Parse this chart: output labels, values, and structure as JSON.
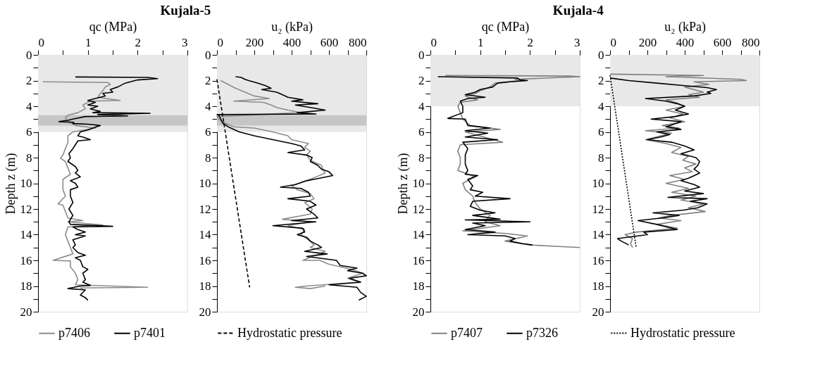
{
  "chart_data": [
    {
      "type": "line",
      "title": "Kujala-5",
      "xlabel": "qc (MPa)",
      "ylabel": "Depth z (m)",
      "xlim": [
        0,
        3
      ],
      "xticks": [
        0,
        {
          "value": 0.5,
          "label": null
        },
        1,
        {
          "value": 1.5,
          "label": null
        },
        2,
        {
          "value": 2.5,
          "label": null
        },
        3
      ],
      "ylim": [
        20,
        0
      ],
      "yticks": [
        0,
        {
          "value": 1,
          "label": null
        },
        2,
        {
          "value": 3,
          "label": null
        },
        4,
        {
          "value": 5,
          "label": null
        },
        6,
        {
          "value": 7,
          "label": null
        },
        8,
        {
          "value": 9,
          "label": null
        },
        10,
        {
          "value": 11,
          "label": null
        },
        12,
        {
          "value": 13,
          "label": null
        },
        14,
        {
          "value": 15,
          "label": null
        },
        16,
        {
          "value": 17,
          "label": null
        },
        18,
        {
          "value": 19,
          "label": null
        },
        20
      ],
      "legend": "bottom",
      "grid": false,
      "bands": [
        {
          "axis": "y",
          "from": 0,
          "to": 6,
          "color": "#e8e8e8"
        },
        {
          "axis": "y",
          "from": 4.7,
          "to": 5.5,
          "color": "#c6c6c6"
        }
      ],
      "series": [
        {
          "name": "p7406",
          "color": "#8c8c8c",
          "x": [
            0.1,
            1.4,
            1.45,
            1.35,
            1.3,
            1.25,
            1.2,
            1.65,
            1.05,
            0.9,
            0.95,
            0.8,
            0.6,
            0.55,
            0.6,
            0.75,
            1.15,
            0.7,
            0.6,
            0.6,
            0.55,
            0.5,
            0.45,
            0.55,
            0.6,
            0.65,
            0.5,
            0.5,
            0.5,
            0.55,
            0.4,
            0.5,
            0.55,
            0.6,
            0.9,
            0.6,
            1.3,
            0.6,
            0.55,
            0.6,
            0.65,
            0.7,
            0.3,
            0.65,
            0.65,
            0.75,
            0.8,
            0.75,
            2.2,
            0.85,
            0.9
          ],
          "values": [
            2.1,
            2.15,
            2.3,
            2.5,
            2.8,
            3.0,
            3.3,
            3.55,
            3.6,
            3.9,
            4.2,
            4.5,
            4.7,
            4.9,
            5.2,
            5.5,
            5.7,
            6.0,
            6.3,
            6.8,
            7.3,
            7.8,
            8.05,
            8.3,
            8.8,
            9.3,
            9.7,
            10.0,
            10.5,
            11.0,
            11.6,
            11.7,
            12.2,
            12.7,
            12.9,
            13.0,
            13.25,
            13.4,
            14.0,
            14.5,
            15.0,
            15.5,
            16.0,
            16.05,
            16.5,
            17.0,
            17.5,
            17.9,
            18.1,
            18.15,
            18.2
          ]
        },
        {
          "name": "p7401",
          "color": "#000000",
          "x": [
            0.75,
            2.2,
            2.4,
            2.0,
            1.75,
            1.6,
            1.45,
            1.5,
            1.3,
            1.35,
            1.15,
            1.0,
            1.15,
            1.0,
            1.2,
            1.05,
            1.25,
            1.1,
            2.25,
            1.2,
            1.8,
            0.95,
            0.7,
            0.6,
            0.42,
            0.72,
            0.7,
            1.0,
            1.25,
            1.1,
            1.0,
            0.85,
            0.8,
            0.9,
            1.05,
            0.8,
            0.75,
            0.7,
            0.62,
            0.65,
            0.6,
            0.75,
            0.8,
            0.75,
            0.85,
            0.65,
            0.75,
            0.8,
            0.65,
            0.65,
            0.7,
            0.62,
            0.7,
            0.62,
            0.65,
            1.5,
            0.7,
            0.8,
            0.95,
            0.75,
            0.95,
            0.7,
            0.75,
            0.7,
            0.8,
            0.95,
            0.75,
            0.85,
            0.9,
            1.0,
            0.9,
            0.95,
            0.9,
            1.05,
            0.85,
            0.6,
            0.95,
            0.85,
            0.95,
            1.0
          ],
          "values": [
            1.72,
            1.75,
            1.85,
            1.95,
            2.2,
            2.5,
            2.7,
            2.9,
            3.0,
            3.2,
            3.4,
            3.55,
            3.7,
            3.9,
            4.0,
            4.2,
            4.4,
            4.5,
            4.55,
            4.65,
            4.75,
            4.8,
            5.0,
            5.1,
            5.2,
            5.25,
            5.35,
            5.4,
            5.5,
            5.7,
            5.85,
            6.0,
            6.3,
            6.4,
            6.6,
            6.7,
            7.0,
            7.3,
            7.7,
            8.0,
            8.3,
            8.7,
            9.0,
            9.2,
            9.5,
            9.8,
            10.0,
            10.3,
            10.5,
            11.0,
            11.5,
            12.0,
            12.5,
            13.0,
            13.2,
            13.35,
            13.4,
            13.6,
            13.8,
            14.0,
            14.1,
            14.4,
            14.8,
            15.0,
            15.4,
            15.6,
            15.8,
            16.0,
            16.5,
            16.7,
            17.0,
            17.5,
            17.7,
            17.95,
            18.0,
            18.2,
            18.3,
            18.7,
            18.9,
            19.1
          ]
        }
      ]
    },
    {
      "type": "line",
      "xlabel": "u₂ (kPa)",
      "xlim": [
        0,
        800
      ],
      "xticks": [
        0,
        {
          "value": 100,
          "label": null
        },
        200,
        {
          "value": 300,
          "label": null
        },
        400,
        {
          "value": 500,
          "label": null
        },
        600,
        {
          "value": 700,
          "label": null
        },
        800
      ],
      "ylim": [
        20,
        0
      ],
      "yticks": [
        0,
        {
          "value": 1,
          "label": null
        },
        2,
        {
          "value": 3,
          "label": null
        },
        4,
        {
          "value": 5,
          "label": null
        },
        6,
        {
          "value": 7,
          "label": null
        },
        8,
        {
          "value": 9,
          "label": null
        },
        10,
        {
          "value": 11,
          "label": null
        },
        12,
        {
          "value": 13,
          "label": null
        },
        14,
        {
          "value": 15,
          "label": null
        },
        16,
        {
          "value": 17,
          "label": null
        },
        18,
        {
          "value": 19,
          "label": null
        },
        20
      ],
      "legend": "bottom",
      "grid": false,
      "bands": [
        {
          "axis": "y",
          "from": 0,
          "to": 6,
          "color": "#e8e8e8"
        },
        {
          "axis": "y",
          "from": 4.7,
          "to": 5.5,
          "color": "#c6c6c6"
        }
      ],
      "series": [
        {
          "color": "#8c8c8c",
          "x": [
            20,
            60,
            100,
            150,
            200,
            280,
            90,
            250,
            290,
            320,
            380,
            450,
            0,
            10,
            40,
            90,
            200,
            300,
            380,
            400,
            490,
            470,
            500,
            480,
            500,
            560,
            570,
            580,
            530,
            480,
            400,
            430,
            500,
            520,
            470,
            510,
            500,
            350,
            500,
            380,
            470,
            450,
            490,
            520,
            500,
            580,
            460,
            550,
            600,
            720,
            780,
            700,
            760,
            480,
            420,
            500,
            580
          ],
          "values": [
            2.0,
            2.3,
            2.6,
            2.9,
            3.2,
            3.4,
            3.6,
            3.7,
            3.9,
            4.1,
            4.3,
            4.5,
            4.8,
            5.0,
            5.3,
            5.6,
            5.7,
            6.0,
            6.3,
            6.6,
            6.9,
            7.2,
            7.5,
            7.8,
            8.2,
            8.6,
            9.0,
            9.2,
            9.5,
            9.8,
            10.2,
            10.5,
            10.8,
            11.2,
            11.5,
            12.0,
            12.4,
            12.8,
            13.0,
            13.3,
            13.6,
            14.0,
            14.4,
            14.8,
            15.0,
            15.3,
            16.0,
            16.0,
            16.3,
            16.7,
            17.0,
            17.4,
            17.7,
            18.0,
            18.1,
            18.2,
            18.0
          ]
        },
        {
          "color": "#000000",
          "x": [
            100,
            130,
            150,
            170,
            220,
            260,
            290,
            240,
            320,
            350,
            380,
            460,
            400,
            540,
            420,
            500,
            580,
            430,
            530,
            0,
            10,
            20,
            30,
            60,
            120,
            200,
            300,
            400,
            450,
            470,
            380,
            480,
            510,
            500,
            540,
            560,
            600,
            620,
            550,
            480,
            420,
            340,
            450,
            490,
            500,
            380,
            500,
            530,
            480,
            520,
            540,
            400,
            530,
            300,
            460,
            470,
            430,
            480,
            500,
            540,
            560,
            470,
            590,
            480,
            640,
            660,
            750,
            700,
            780,
            800,
            710,
            770,
            600,
            750,
            770,
            800,
            760
          ],
          "values": [
            1.7,
            1.75,
            1.9,
            2.0,
            2.2,
            2.4,
            2.6,
            2.7,
            2.9,
            3.1,
            3.3,
            3.5,
            3.6,
            3.8,
            3.9,
            4.1,
            4.3,
            4.5,
            4.6,
            4.65,
            4.7,
            5.0,
            5.3,
            5.6,
            6.0,
            6.3,
            6.6,
            6.9,
            7.1,
            7.4,
            7.6,
            7.8,
            8.0,
            8.3,
            8.6,
            8.9,
            9.1,
            9.4,
            9.6,
            9.8,
            10.1,
            10.3,
            10.4,
            10.7,
            11.0,
            11.2,
            11.4,
            11.7,
            12.0,
            12.4,
            12.7,
            12.9,
            13.0,
            13.3,
            13.5,
            13.8,
            14.0,
            14.2,
            14.5,
            14.8,
            15.0,
            15.3,
            15.5,
            15.7,
            16.0,
            16.4,
            16.6,
            16.8,
            17.0,
            17.2,
            17.4,
            17.7,
            17.9,
            18.1,
            18.5,
            18.8,
            19.1
          ]
        },
        {
          "name": "Hydrostatic pressure",
          "color": "#000000",
          "line_style": "dashed",
          "x": [
            0,
            175
          ],
          "values": [
            1.9,
            18.1
          ]
        }
      ]
    },
    {
      "type": "line",
      "title": "Kujala-4",
      "xlabel": "qc (MPa)",
      "ylabel": "Depth z (m)",
      "xlim": [
        0,
        3
      ],
      "xticks": [
        0,
        {
          "value": 0.5,
          "label": null
        },
        1,
        {
          "value": 1.5,
          "label": null
        },
        2,
        {
          "value": 2.5,
          "label": null
        },
        3
      ],
      "ylim": [
        20,
        0
      ],
      "yticks": [
        0,
        {
          "value": 1,
          "label": null
        },
        2,
        {
          "value": 3,
          "label": null
        },
        4,
        {
          "value": 5,
          "label": null
        },
        6,
        {
          "value": 7,
          "label": null
        },
        8,
        {
          "value": 9,
          "label": null
        },
        10,
        {
          "value": 11,
          "label": null
        },
        12,
        {
          "value": 13,
          "label": null
        },
        14,
        {
          "value": 15,
          "label": null
        },
        16,
        {
          "value": 17,
          "label": null
        },
        18,
        {
          "value": 19,
          "label": null
        },
        20
      ],
      "legend": "bottom",
      "grid": false,
      "bands": [
        {
          "axis": "y",
          "from": 0,
          "to": 4,
          "color": "#e8e8e8"
        }
      ],
      "series": [
        {
          "name": "p7407",
          "color": "#808080",
          "x": [
            0.3,
            2.8,
            3.0,
            1.7,
            1.8,
            1.3,
            1.2,
            1.0,
            0.9,
            0.7,
            0.95,
            0.6,
            0.55,
            0.6,
            0.65,
            0.8,
            1.4,
            0.7,
            1.45,
            0.6,
            0.55,
            0.6,
            0.6,
            0.55,
            0.9,
            0.65,
            0.7,
            0.85,
            0.9,
            1.0,
            1.2,
            1.1,
            1.4,
            0.65,
            1.5,
            1.95,
            1.5,
            2.0,
            2.5,
            3.0
          ],
          "values": [
            1.6,
            1.65,
            1.7,
            1.9,
            2.0,
            2.2,
            2.5,
            2.8,
            3.0,
            3.2,
            3.5,
            3.7,
            4.0,
            4.5,
            5.0,
            5.5,
            5.8,
            6.0,
            6.8,
            7.0,
            7.5,
            8.0,
            8.5,
            9.0,
            9.5,
            10.0,
            10.5,
            11.0,
            11.5,
            12.0,
            12.5,
            13.0,
            13.3,
            13.7,
            13.9,
            14.1,
            14.5,
            14.8,
            14.9,
            15.0
          ]
        },
        {
          "name": "p7326",
          "color": "#000000",
          "x": [
            0.15,
            1.75,
            1.8,
            1.95,
            1.6,
            1.35,
            1.25,
            1.0,
            0.9,
            0.7,
            1.1,
            0.75,
            0.6,
            0.65,
            0.65,
            0.35,
            0.7,
            0.75,
            1.2,
            0.7,
            1.15,
            0.7,
            1.35,
            0.65,
            0.75,
            0.7,
            0.7,
            0.75,
            0.7,
            0.95,
            0.75,
            0.85,
            0.8,
            1.05,
            0.9,
            1.6,
            0.85,
            0.8,
            1.0,
            1.3,
            0.85,
            1.4,
            0.7,
            2.0,
            0.85,
            1.1,
            0.7,
            1.3,
            0.75,
            1.5,
            1.7,
            1.6,
            1.85,
            2.05
          ],
          "values": [
            1.7,
            1.8,
            1.95,
            2.0,
            2.1,
            2.2,
            2.5,
            2.7,
            2.9,
            3.1,
            3.3,
            3.4,
            3.6,
            4.0,
            4.5,
            4.95,
            5.0,
            5.5,
            5.7,
            5.9,
            6.1,
            6.4,
            6.6,
            6.8,
            7.3,
            7.8,
            8.5,
            9.0,
            9.3,
            9.4,
            9.7,
            10.2,
            10.5,
            10.7,
            11.0,
            11.2,
            11.4,
            11.8,
            12.1,
            12.3,
            12.5,
            12.8,
            12.85,
            13.0,
            13.1,
            13.3,
            13.6,
            13.8,
            14.0,
            14.1,
            14.3,
            14.5,
            14.7,
            14.8
          ]
        }
      ]
    },
    {
      "type": "line",
      "xlabel": "u₂ (kPa)",
      "xlim": [
        0,
        800
      ],
      "xticks": [
        0,
        {
          "value": 100,
          "label": null
        },
        200,
        {
          "value": 300,
          "label": null
        },
        400,
        {
          "value": 500,
          "label": null
        },
        600,
        {
          "value": 700,
          "label": null
        },
        800
      ],
      "ylim": [
        20,
        0
      ],
      "yticks": [
        0,
        {
          "value": 1,
          "label": null
        },
        2,
        {
          "value": 3,
          "label": null
        },
        4,
        {
          "value": 5,
          "label": null
        },
        6,
        {
          "value": 7,
          "label": null
        },
        8,
        {
          "value": 9,
          "label": null
        },
        10,
        {
          "value": 11,
          "label": null
        },
        12,
        {
          "value": 13,
          "label": null
        },
        14,
        {
          "value": 15,
          "label": null
        },
        16,
        {
          "value": 17,
          "label": null
        },
        18,
        {
          "value": 19,
          "label": null
        },
        20
      ],
      "legend": "bottom",
      "grid": false,
      "bands": [
        {
          "axis": "y",
          "from": 0,
          "to": 4,
          "color": "#e8e8e8"
        }
      ],
      "series": [
        {
          "color": "#808080",
          "x": [
            0,
            500,
            300,
            700,
            730,
            450,
            530,
            400,
            500,
            420,
            480,
            300,
            350,
            400,
            300,
            390,
            320,
            400,
            280,
            370,
            190,
            330,
            190,
            300,
            380,
            330,
            420,
            390,
            460,
            400,
            440,
            320,
            400,
            300,
            420,
            330,
            460,
            380,
            500,
            420,
            510,
            330,
            260,
            380,
            250,
            360,
            140,
            80,
            120,
            110,
            120
          ],
          "values": [
            1.5,
            1.6,
            1.7,
            1.9,
            2.0,
            2.1,
            2.3,
            2.5,
            2.9,
            3.1,
            3.3,
            3.5,
            3.7,
            4.0,
            4.3,
            4.6,
            4.9,
            5.2,
            5.5,
            5.7,
            5.9,
            6.1,
            6.6,
            6.9,
            7.2,
            7.6,
            7.9,
            8.2,
            8.5,
            8.8,
            9.1,
            9.4,
            9.7,
            10.0,
            10.4,
            10.7,
            11.0,
            11.3,
            11.6,
            11.9,
            12.2,
            12.5,
            12.7,
            12.9,
            13.2,
            13.5,
            13.8,
            14.0,
            14.3,
            14.7,
            15.0
          ]
        },
        {
          "color": "#000000",
          "x": [
            0,
            100,
            250,
            400,
            520,
            570,
            520,
            540,
            450,
            190,
            300,
            360,
            400,
            350,
            420,
            350,
            220,
            380,
            300,
            380,
            250,
            320,
            270,
            200,
            330,
            400,
            450,
            380,
            460,
            480,
            470,
            450,
            480,
            420,
            380,
            450,
            480,
            400,
            500,
            310,
            520,
            430,
            520,
            470,
            390,
            230,
            370,
            280,
            150,
            250,
            360,
            180,
            200,
            40,
            60,
            100
          ],
          "values": [
            1.8,
            2.0,
            2.2,
            2.4,
            2.55,
            2.7,
            2.9,
            3.0,
            3.2,
            3.4,
            3.6,
            3.8,
            4.0,
            4.3,
            4.6,
            4.8,
            5.0,
            5.2,
            5.6,
            5.8,
            6.0,
            6.2,
            6.4,
            6.6,
            6.8,
            7.1,
            7.4,
            7.7,
            8.0,
            8.3,
            8.6,
            8.9,
            9.2,
            9.6,
            9.8,
            10.1,
            10.3,
            10.6,
            10.8,
            11.1,
            11.2,
            11.4,
            11.6,
            11.9,
            12.1,
            12.3,
            12.5,
            12.7,
            12.9,
            13.2,
            13.6,
            13.8,
            14.0,
            14.3,
            14.5,
            14.8
          ]
        },
        {
          "name": "Hydrostatic pressure",
          "color": "#000000",
          "line_style": "dotted",
          "x": [
            0,
            140
          ],
          "values": [
            1.6,
            15.0
          ]
        }
      ]
    }
  ]
}
